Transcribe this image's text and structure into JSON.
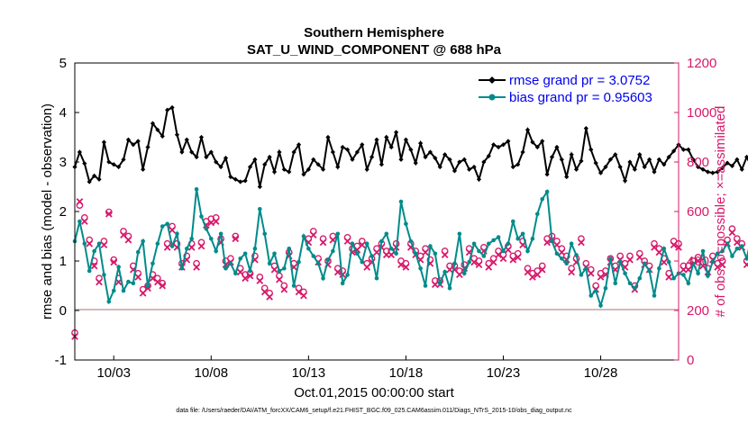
{
  "chart_data": {
    "type": "line",
    "title": "Southern Hemisphere",
    "subtitle": "SAT_U_WIND_COMPONENT @ 688 hPa",
    "xlabel": "Oct.01,2015 00:00:00 start",
    "ylabel": "rmse and bias (model - observation)",
    "ylabel_right": "# of obs: o=possible; ×=assimilated",
    "ylim": [
      -1,
      5
    ],
    "ylim_right": [
      0,
      1200
    ],
    "xlim": [
      1,
      32
    ],
    "yticks": [
      "-1",
      "0",
      "1",
      "2",
      "3",
      "4",
      "5"
    ],
    "yticks_right": [
      "0",
      "200",
      "400",
      "600",
      "800",
      "1000",
      "1200"
    ],
    "xtick_labels": [
      "10/03",
      "10/08",
      "10/13",
      "10/18",
      "10/23",
      "10/28"
    ],
    "xtick_values": [
      3,
      8,
      13,
      18,
      23,
      28
    ],
    "footnote": "data file: /Users/raeder/DAI/ATM_forcXX/CAM6_setup/f.e21.FHIST_BGC.f09_025.CAM6assim.011/Diags_NTrS_2015-10/obs_diag_output.nc",
    "legend_position": "top-right",
    "colors": {
      "rmse": "#000000",
      "bias": "#008b8b",
      "obs": "#d6196a",
      "zero_line": "#c4a3a3"
    },
    "series": [
      {
        "name": "rmse grand pr = 3.0752",
        "color": "#000000",
        "values": [
          2.9,
          3.2,
          2.97,
          2.6,
          2.72,
          2.65,
          3.4,
          3.0,
          2.95,
          2.9,
          3.05,
          3.45,
          3.35,
          3.42,
          2.85,
          3.3,
          3.78,
          3.65,
          3.52,
          4.05,
          4.1,
          3.55,
          3.2,
          3.45,
          3.2,
          3.1,
          3.5,
          3.1,
          3.2,
          3.0,
          2.9,
          3.08,
          2.7,
          2.65,
          2.6,
          2.62,
          2.9,
          3.05,
          2.5,
          2.95,
          3.1,
          2.8,
          3.2,
          2.85,
          2.8,
          3.2,
          3.35,
          2.75,
          2.85,
          3.05,
          2.95,
          2.85,
          3.5,
          3.2,
          2.9,
          3.3,
          3.25,
          3.05,
          3.2,
          3.35,
          2.85,
          3.1,
          3.45,
          2.95,
          3.5,
          3.3,
          3.6,
          3.05,
          3.45,
          3.25,
          2.98,
          3.38,
          3.1,
          3.2,
          3.08,
          2.9,
          3.15,
          3.05,
          2.82,
          3.0,
          3.05,
          2.85,
          2.9,
          2.65,
          3.0,
          3.12,
          3.35,
          3.3,
          3.35,
          3.42,
          2.9,
          2.95,
          3.2,
          3.65,
          3.4,
          3.3,
          3.42,
          2.75,
          3.1,
          3.3,
          3.05,
          2.7,
          3.15,
          2.85,
          3.02,
          3.68,
          3.25,
          2.98,
          2.78,
          2.9,
          3.05,
          3.15,
          2.9,
          2.62,
          3.0,
          2.85,
          3.15,
          2.9,
          3.05,
          2.8,
          3.05,
          2.95,
          3.1,
          3.22,
          3.35,
          3.25,
          3.25,
          3.05,
          2.9,
          2.85,
          2.8,
          2.78,
          2.8,
          2.88,
          2.98,
          2.92,
          3.05,
          2.85,
          3.1,
          2.9,
          3.0,
          2.95,
          2.85,
          3.2,
          3.78,
          2.95,
          3.25,
          3.0,
          2.98,
          3.1,
          3.38,
          3.0,
          2.9,
          2.72,
          3.2,
          2.85,
          2.78,
          2.72,
          3.0,
          2.8,
          3.05,
          3.3,
          2.95,
          3.05,
          3.28,
          3.05,
          3.38,
          3.05,
          2.95,
          3.28,
          2.85
        ]
      },
      {
        "name": "bias grand pr = 0.95603",
        "color": "#008b8b",
        "values": [
          1.4,
          1.8,
          1.35,
          0.8,
          1.2,
          1.35,
          0.72,
          0.18,
          0.4,
          0.88,
          0.4,
          0.58,
          0.55,
          1.18,
          1.4,
          0.5,
          0.95,
          1.35,
          1.7,
          1.75,
          1.3,
          1.55,
          0.85,
          1.25,
          1.45,
          2.45,
          1.9,
          1.65,
          1.45,
          1.2,
          1.55,
          0.85,
          0.95,
          0.75,
          1.05,
          1.15,
          0.8,
          1.25,
          2.05,
          1.55,
          0.95,
          1.15,
          0.8,
          0.85,
          1.25,
          0.5,
          0.98,
          1.5,
          1.25,
          1.1,
          0.95,
          0.65,
          1.02,
          1.2,
          1.55,
          0.55,
          0.72,
          1.35,
          1.15,
          0.98,
          1.35,
          1.1,
          0.65,
          1.4,
          1.55,
          1.25,
          1.15,
          2.2,
          1.75,
          1.4,
          1.15,
          0.85,
          0.5,
          1.3,
          1.15,
          0.55,
          0.78,
          0.45,
          0.95,
          1.55,
          0.75,
          0.98,
          1.35,
          1.2,
          1.1,
          1.35,
          1.42,
          1.48,
          1.2,
          1.35,
          1.8,
          1.45,
          1.55,
          1.2,
          1.45,
          1.95,
          2.25,
          2.4,
          1.4,
          1.15,
          1.05,
          0.95,
          1.35,
          1.12,
          0.72,
          0.85,
          0.3,
          0.4,
          0.1,
          0.45,
          1.05,
          0.55,
          0.98,
          0.75,
          0.55,
          0.45,
          0.65,
          0.95,
          0.8,
          0.3,
          0.85,
          1.25,
          0.98,
          0.65,
          0.75,
          0.72,
          0.55,
          0.95,
          0.75,
          1.2,
          0.7,
          0.98,
          1.15,
          1.2,
          1.35,
          1.1,
          1.25,
          1.3,
          1.05,
          1.5,
          1.0,
          0.55,
          0.9,
          0.5,
          0.45,
          0.12,
          0.18,
          0.52,
          0.72,
          0.3,
          0.58,
          0.3,
          0.68,
          0.55,
          0.8,
          1.4,
          1.5,
          1.05,
          0.72,
          0.9,
          0.45,
          1.08,
          1.15,
          0.42,
          0.25,
          0.58,
          0.68
        ]
      }
    ],
    "obs_possible": [
      110,
      625,
      575,
      485,
      400,
      330,
      480,
      598,
      405,
      330,
      520,
      500,
      380,
      350,
      285,
      300,
      345,
      330,
      310,
      470,
      540,
      470,
      390,
      420,
      470,
      390,
      475,
      560,
      570,
      575,
      490,
      400,
      410,
      500,
      370,
      345,
      350,
      420,
      335,
      290,
      270,
      380,
      340,
      300,
      435,
      390,
      290,
      275,
      490,
      520,
      410,
      490,
      400,
      500,
      370,
      360,
      495,
      450,
      460,
      480,
      390,
      410,
      450,
      470,
      440,
      440,
      470,
      400,
      390,
      470,
      440,
      420,
      450,
      405,
      320,
      320,
      440,
      380,
      380,
      360,
      385,
      450,
      410,
      400,
      455,
      390,
      410,
      440,
      425,
      460,
      420,
      430,
      480,
      370,
      350,
      360,
      380,
      490,
      500,
      480,
      450,
      420,
      370,
      410,
      490,
      390,
      365,
      300,
      350,
      360,
      410,
      380,
      420,
      390,
      420,
      300,
      430,
      400,
      380,
      470,
      450,
      410,
      350,
      480,
      470,
      380,
      380,
      400,
      415,
      395,
      370,
      420,
      390,
      400,
      485,
      530,
      490,
      470,
      400,
      455,
      380,
      430,
      400,
      370,
      360,
      310,
      380,
      380,
      395,
      340,
      300,
      370,
      400,
      420,
      360,
      340,
      400,
      480,
      420,
      350,
      410,
      400,
      450,
      370,
      340,
      390,
      390,
      330,
      420,
      350
    ],
    "obs_assimilated": [
      95,
      640,
      560,
      470,
      380,
      315,
      465,
      590,
      395,
      315,
      505,
      485,
      365,
      335,
      270,
      290,
      330,
      315,
      300,
      455,
      525,
      455,
      375,
      405,
      455,
      375,
      460,
      545,
      555,
      560,
      475,
      385,
      395,
      490,
      355,
      330,
      340,
      405,
      320,
      275,
      255,
      365,
      325,
      285,
      420,
      375,
      275,
      260,
      475,
      505,
      395,
      475,
      385,
      485,
      355,
      345,
      480,
      435,
      445,
      465,
      375,
      395,
      435,
      455,
      425,
      425,
      455,
      385,
      375,
      455,
      425,
      405,
      435,
      390,
      305,
      305,
      425,
      365,
      365,
      345,
      370,
      435,
      395,
      385,
      440,
      375,
      395,
      425,
      410,
      445,
      405,
      415,
      465,
      355,
      335,
      345,
      365,
      475,
      485,
      465,
      435,
      405,
      355,
      395,
      475,
      375,
      350,
      285,
      335,
      345,
      395,
      365,
      405,
      375,
      405,
      285,
      415,
      385,
      365,
      455,
      435,
      395,
      335,
      465,
      455,
      365,
      365,
      385,
      400,
      380,
      355,
      405,
      375,
      385,
      470,
      515,
      475,
      455,
      385,
      440,
      365,
      415,
      385,
      355,
      345,
      295,
      365,
      365,
      380,
      325,
      285,
      355,
      385,
      405,
      345,
      325,
      385,
      465,
      405,
      335,
      395,
      385,
      435,
      355,
      325,
      375,
      375,
      315,
      405,
      335
    ]
  }
}
